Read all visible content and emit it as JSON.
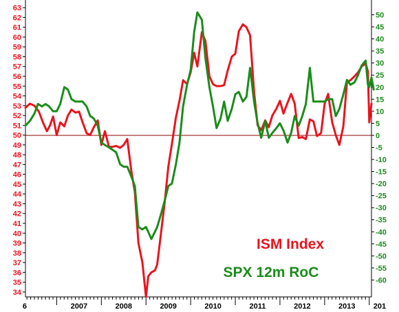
{
  "colors": {
    "ism": "#e8141e",
    "spx": "#1a8c1a",
    "axis": "#000000",
    "zero_line": "#8b0000",
    "left_ticks": "#e8141e",
    "right_ticks": "#1a8c1a",
    "background": "#ffffff"
  },
  "chart_data": {
    "type": "line",
    "title": "",
    "x_ticks": [
      "6",
      "2007",
      "2008",
      "2009",
      "2010",
      "2011",
      "2012",
      "2013",
      "201"
    ],
    "x_range": [
      2006.3,
      2014.05
    ],
    "left_axis": {
      "ylim": [
        33.5,
        63.5
      ],
      "ticks": [
        34,
        35,
        36,
        37,
        38,
        39,
        40,
        41,
        42,
        43,
        44,
        45,
        46,
        47,
        48,
        49,
        50,
        51,
        52,
        53,
        54,
        55,
        56,
        57,
        58,
        59,
        60,
        61,
        62,
        63
      ]
    },
    "right_axis": {
      "ylim": [
        -67,
        55
      ],
      "ticks": [
        -60,
        -55,
        -50,
        -45,
        -40,
        -35,
        -30,
        -25,
        -20,
        -15,
        -10,
        -5,
        0,
        5,
        10,
        15,
        20,
        25,
        30,
        35,
        40,
        45,
        50
      ]
    },
    "reference_line": {
      "axis": "right",
      "value": 0
    },
    "legend_position": "bottom-right",
    "series": [
      {
        "name": "ISM Index",
        "axis": "left",
        "points": [
          [
            2006.3,
            52.8
          ],
          [
            2006.4,
            53.2
          ],
          [
            2006.5,
            53.0
          ],
          [
            2006.6,
            52.4
          ],
          [
            2006.7,
            51.2
          ],
          [
            2006.78,
            50.4
          ],
          [
            2006.85,
            51.0
          ],
          [
            2006.92,
            51.9
          ],
          [
            2007.0,
            50.0
          ],
          [
            2007.08,
            51.3
          ],
          [
            2007.17,
            50.9
          ],
          [
            2007.25,
            52.0
          ],
          [
            2007.33,
            52.6
          ],
          [
            2007.42,
            52.3
          ],
          [
            2007.5,
            52.4
          ],
          [
            2007.58,
            51.3
          ],
          [
            2007.67,
            50.2
          ],
          [
            2007.75,
            50.0
          ],
          [
            2007.83,
            50.8
          ],
          [
            2007.92,
            51.5
          ],
          [
            2008.0,
            49.0
          ],
          [
            2008.08,
            50.4
          ],
          [
            2008.17,
            48.8
          ],
          [
            2008.25,
            48.8
          ],
          [
            2008.33,
            48.9
          ],
          [
            2008.42,
            48.7
          ],
          [
            2008.5,
            49.0
          ],
          [
            2008.58,
            49.6
          ],
          [
            2008.67,
            46.4
          ],
          [
            2008.75,
            44.2
          ],
          [
            2008.83,
            39.0
          ],
          [
            2008.92,
            37.0
          ],
          [
            2009.0,
            33.5
          ],
          [
            2009.05,
            35.6
          ],
          [
            2009.12,
            36.0
          ],
          [
            2009.2,
            36.2
          ],
          [
            2009.25,
            36.8
          ],
          [
            2009.33,
            39.8
          ],
          [
            2009.42,
            43.2
          ],
          [
            2009.5,
            46.8
          ],
          [
            2009.58,
            49.1
          ],
          [
            2009.67,
            51.8
          ],
          [
            2009.75,
            53.5
          ],
          [
            2009.83,
            55.6
          ],
          [
            2009.92,
            55.2
          ],
          [
            2010.0,
            56.4
          ],
          [
            2010.08,
            58.4
          ],
          [
            2010.15,
            57.0
          ],
          [
            2010.25,
            60.5
          ],
          [
            2010.33,
            59.6
          ],
          [
            2010.42,
            56.0
          ],
          [
            2010.5,
            55.2
          ],
          [
            2010.58,
            55.0
          ],
          [
            2010.67,
            55.0
          ],
          [
            2010.75,
            55.1
          ],
          [
            2010.83,
            56.6
          ],
          [
            2010.92,
            58.0
          ],
          [
            2011.0,
            58.3
          ],
          [
            2011.08,
            60.6
          ],
          [
            2011.17,
            61.3
          ],
          [
            2011.25,
            61.0
          ],
          [
            2011.33,
            60.2
          ],
          [
            2011.42,
            54.4
          ],
          [
            2011.5,
            51.0
          ],
          [
            2011.58,
            50.5
          ],
          [
            2011.67,
            51.5
          ],
          [
            2011.75,
            50.8
          ],
          [
            2011.83,
            52.0
          ],
          [
            2011.92,
            52.7
          ],
          [
            2012.0,
            53.5
          ],
          [
            2012.08,
            52.2
          ],
          [
            2012.17,
            53.3
          ],
          [
            2012.25,
            54.2
          ],
          [
            2012.33,
            53.2
          ],
          [
            2012.42,
            49.7
          ],
          [
            2012.5,
            49.8
          ],
          [
            2012.58,
            49.6
          ],
          [
            2012.67,
            51.6
          ],
          [
            2012.75,
            51.4
          ],
          [
            2012.83,
            49.9
          ],
          [
            2012.92,
            50.2
          ],
          [
            2013.0,
            53.2
          ],
          [
            2013.08,
            54.2
          ],
          [
            2013.17,
            51.3
          ],
          [
            2013.25,
            50.0
          ],
          [
            2013.33,
            49.0
          ],
          [
            2013.42,
            50.9
          ],
          [
            2013.5,
            55.4
          ],
          [
            2013.58,
            55.6
          ],
          [
            2013.67,
            56.0
          ],
          [
            2013.75,
            56.4
          ],
          [
            2013.83,
            57.0
          ],
          [
            2013.92,
            57.3
          ],
          [
            2013.97,
            56.5
          ],
          [
            2014.0,
            51.3
          ],
          [
            2014.05,
            53.2
          ]
        ]
      },
      {
        "name": "SPX 12m RoC",
        "axis": "right",
        "points": [
          [
            2006.3,
            4
          ],
          [
            2006.4,
            6
          ],
          [
            2006.5,
            9
          ],
          [
            2006.58,
            13
          ],
          [
            2006.67,
            12
          ],
          [
            2006.75,
            13
          ],
          [
            2006.83,
            12
          ],
          [
            2006.92,
            10
          ],
          [
            2007.0,
            10
          ],
          [
            2007.08,
            13
          ],
          [
            2007.17,
            20
          ],
          [
            2007.25,
            19
          ],
          [
            2007.33,
            15
          ],
          [
            2007.42,
            14
          ],
          [
            2007.5,
            14
          ],
          [
            2007.58,
            14
          ],
          [
            2007.67,
            12
          ],
          [
            2007.75,
            8
          ],
          [
            2007.83,
            7
          ],
          [
            2007.92,
            4
          ],
          [
            2008.0,
            -3
          ],
          [
            2008.08,
            -4
          ],
          [
            2008.17,
            -5
          ],
          [
            2008.25,
            -6
          ],
          [
            2008.33,
            -7
          ],
          [
            2008.42,
            -12
          ],
          [
            2008.5,
            -13
          ],
          [
            2008.58,
            -13
          ],
          [
            2008.67,
            -17
          ],
          [
            2008.75,
            -21
          ],
          [
            2008.83,
            -38
          ],
          [
            2008.92,
            -39
          ],
          [
            2009.0,
            -38
          ],
          [
            2009.05,
            -40
          ],
          [
            2009.12,
            -43
          ],
          [
            2009.2,
            -40
          ],
          [
            2009.25,
            -38
          ],
          [
            2009.33,
            -33
          ],
          [
            2009.42,
            -27
          ],
          [
            2009.5,
            -21
          ],
          [
            2009.58,
            -20
          ],
          [
            2009.67,
            -12
          ],
          [
            2009.75,
            -3
          ],
          [
            2009.83,
            12
          ],
          [
            2009.92,
            21
          ],
          [
            2010.0,
            27
          ],
          [
            2010.08,
            43
          ],
          [
            2010.15,
            51
          ],
          [
            2010.25,
            48
          ],
          [
            2010.33,
            32
          ],
          [
            2010.42,
            20
          ],
          [
            2010.5,
            12
          ],
          [
            2010.58,
            3
          ],
          [
            2010.67,
            7
          ],
          [
            2010.75,
            14
          ],
          [
            2010.83,
            6
          ],
          [
            2010.92,
            11
          ],
          [
            2011.0,
            17
          ],
          [
            2011.08,
            18
          ],
          [
            2011.17,
            14
          ],
          [
            2011.25,
            16
          ],
          [
            2011.33,
            28
          ],
          [
            2011.42,
            14
          ],
          [
            2011.5,
            5
          ],
          [
            2011.58,
            -1
          ],
          [
            2011.67,
            6
          ],
          [
            2011.75,
            -1
          ],
          [
            2011.83,
            1
          ],
          [
            2011.92,
            3
          ],
          [
            2012.0,
            5
          ],
          [
            2012.08,
            2
          ],
          [
            2012.17,
            -3
          ],
          [
            2012.25,
            1
          ],
          [
            2012.33,
            8
          ],
          [
            2012.42,
            4
          ],
          [
            2012.5,
            8
          ],
          [
            2012.58,
            13
          ],
          [
            2012.67,
            28
          ],
          [
            2012.75,
            14
          ],
          [
            2012.83,
            14
          ],
          [
            2012.92,
            14
          ],
          [
            2013.0,
            14
          ],
          [
            2013.08,
            15
          ],
          [
            2013.17,
            15
          ],
          [
            2013.25,
            8
          ],
          [
            2013.33,
            11
          ],
          [
            2013.42,
            17
          ],
          [
            2013.5,
            23
          ],
          [
            2013.58,
            21
          ],
          [
            2013.67,
            22
          ],
          [
            2013.75,
            25
          ],
          [
            2013.83,
            29
          ],
          [
            2013.92,
            31
          ],
          [
            2013.97,
            21
          ],
          [
            2014.0,
            20
          ],
          [
            2014.05,
            24
          ],
          [
            2014.1,
            19
          ]
        ]
      }
    ]
  }
}
